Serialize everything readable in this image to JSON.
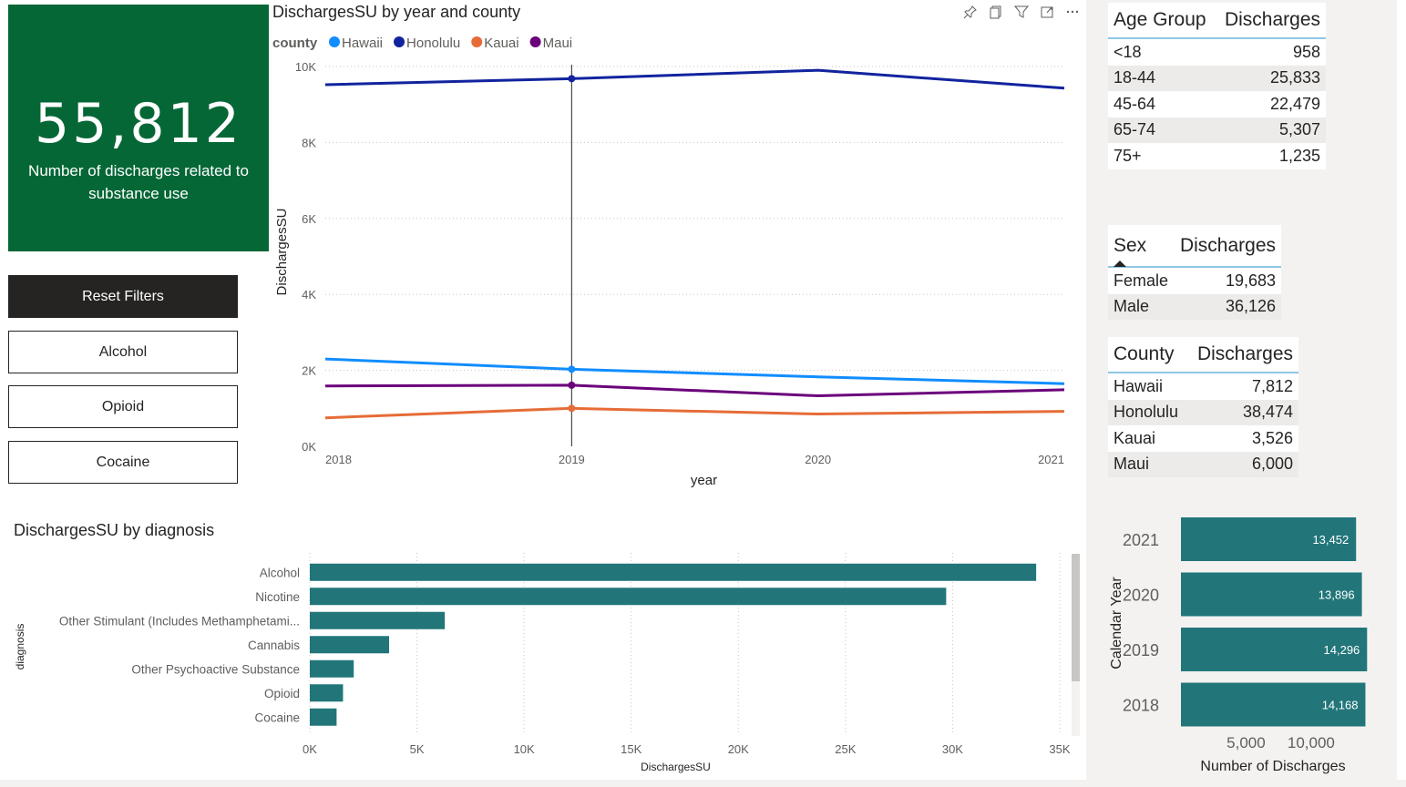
{
  "kpi": {
    "value": "55,812",
    "label": "Number of discharges related to substance use"
  },
  "buttons": {
    "reset": "Reset Filters",
    "alcohol": "Alcohol",
    "opioid": "Opioid",
    "cocaine": "Cocaine"
  },
  "line_chart": {
    "title": "DischargesSU by year and county"
  },
  "bar_chart": {
    "title": "DischargesSU by diagnosis"
  },
  "year_chart": {
    "title": ""
  },
  "colors": {
    "accent_green": "#056736",
    "bar_teal": "#22767a",
    "hawaii": "#118dff",
    "honolulu": "#12239e",
    "kauai": "#e66c37",
    "maui": "#6b007b"
  },
  "age_table": {
    "headers": [
      "Age Group",
      "Discharges"
    ],
    "rows": [
      [
        "<18",
        "958"
      ],
      [
        "18-44",
        "25,833"
      ],
      [
        "45-64",
        "22,479"
      ],
      [
        "65-74",
        "5,307"
      ],
      [
        "75+",
        "1,235"
      ]
    ]
  },
  "sex_table": {
    "headers": [
      "Sex",
      "Discharges"
    ],
    "rows": [
      [
        "Female",
        "19,683"
      ],
      [
        "Male",
        "36,126"
      ]
    ]
  },
  "county_table": {
    "headers": [
      "County",
      "Discharges"
    ],
    "rows": [
      [
        "Hawaii",
        "7,812"
      ],
      [
        "Honolulu",
        "38,474"
      ],
      [
        "Kauai",
        "3,526"
      ],
      [
        "Maui",
        "6,000"
      ]
    ]
  },
  "chart_data": [
    {
      "type": "line",
      "title": "DischargesSU by year and county",
      "xlabel": "year",
      "ylabel": "DischargesSU",
      "legend_title": "county",
      "legend_position": "top-left",
      "x": [
        2018,
        2019,
        2020,
        2021
      ],
      "ylim": [
        0,
        10000
      ],
      "yticks": [
        "0K",
        "2K",
        "4K",
        "6K",
        "8K",
        "10K"
      ],
      "series": [
        {
          "name": "Hawaii",
          "color": "#118dff",
          "values": [
            2300,
            2030,
            1830,
            1650
          ]
        },
        {
          "name": "Honolulu",
          "color": "#12239e",
          "values": [
            9520,
            9680,
            9900,
            9430
          ]
        },
        {
          "name": "Kauai",
          "color": "#e66c37",
          "values": [
            750,
            1000,
            850,
            920
          ]
        },
        {
          "name": "Maui",
          "color": "#6b007b",
          "values": [
            1590,
            1610,
            1330,
            1490
          ]
        }
      ],
      "highlight_x": 2019,
      "grid": true
    },
    {
      "type": "bar",
      "orientation": "horizontal",
      "title": "DischargesSU by diagnosis",
      "xlabel": "DischargesSU",
      "ylabel": "diagnosis",
      "categories": [
        "Alcohol",
        "Nicotine",
        "Other Stimulant (Includes Methamphetami...",
        "Cannabis",
        "Other Psychoactive Substance",
        "Opioid",
        "Cocaine"
      ],
      "values": [
        33900,
        29700,
        6300,
        3700,
        2050,
        1550,
        1250
      ],
      "xlim": [
        0,
        35000
      ],
      "xticks": [
        "0K",
        "5K",
        "10K",
        "15K",
        "20K",
        "25K",
        "30K",
        "35K"
      ],
      "grid": true
    },
    {
      "type": "bar",
      "orientation": "horizontal",
      "xlabel": "Number of Discharges",
      "ylabel": "Calendar Year",
      "categories": [
        "2021",
        "2020",
        "2019",
        "2018"
      ],
      "values": [
        13452,
        13896,
        14296,
        14168
      ],
      "labels": [
        "13,452",
        "13,896",
        "14,296",
        "14,168"
      ],
      "xticks": [
        "5,000",
        "10,000"
      ]
    }
  ]
}
